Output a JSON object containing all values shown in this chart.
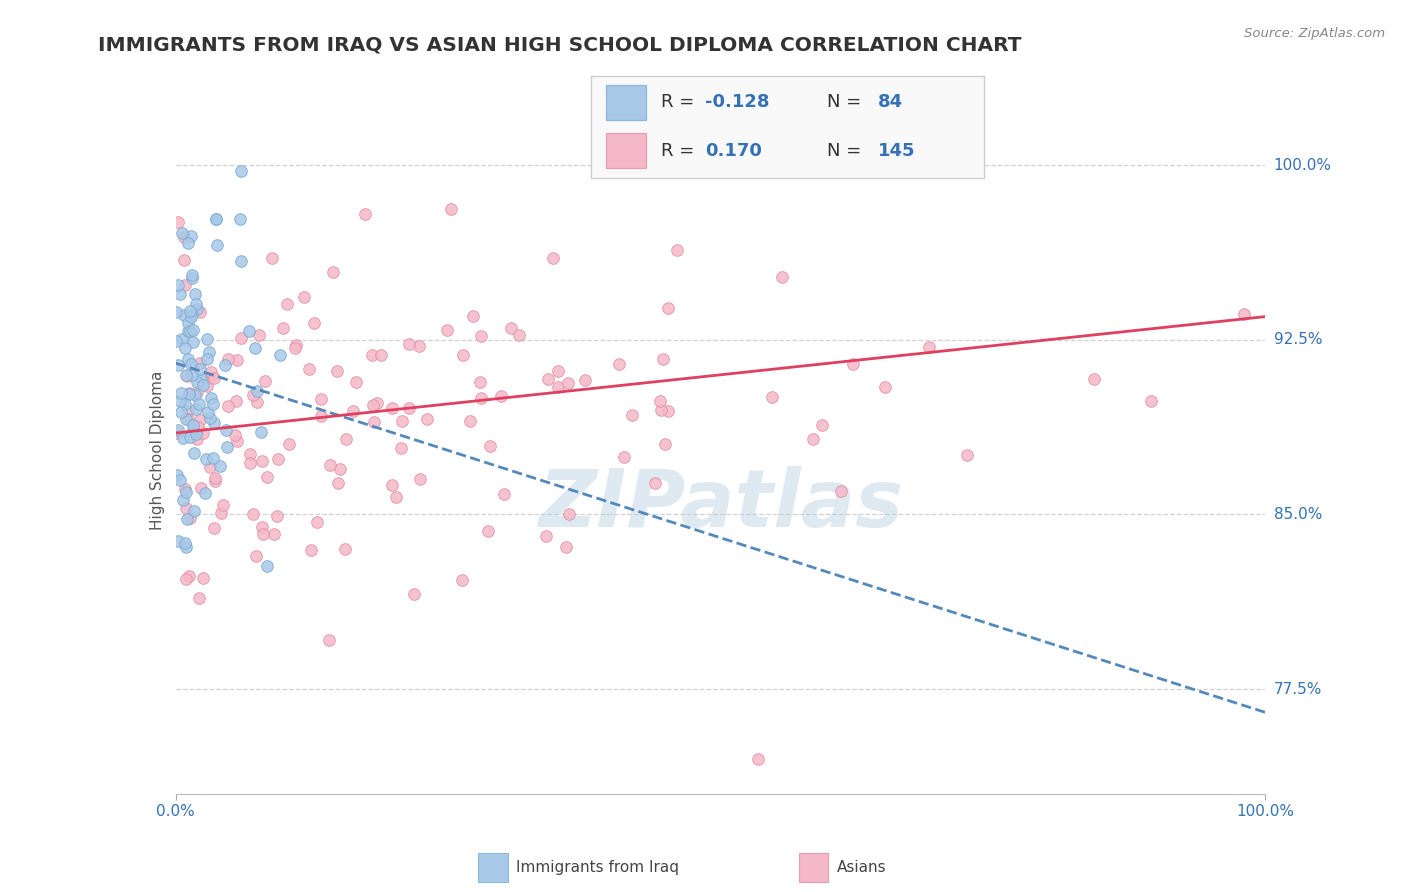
{
  "title": "IMMIGRANTS FROM IRAQ VS ASIAN HIGH SCHOOL DIPLOMA CORRELATION CHART",
  "source_text": "Source: ZipAtlas.com",
  "ylabel": "High School Diploma",
  "right_yticks": [
    77.5,
    85.0,
    92.5,
    100.0
  ],
  "right_ytick_labels": [
    "77.5%",
    "85.0%",
    "92.5%",
    "100.0%"
  ],
  "xlim": [
    0.0,
    100.0
  ],
  "ylim": [
    73.0,
    102.5
  ],
  "watermark": "ZIPatlas",
  "iraq_scatter_color": "#a8c8e8",
  "iraq_scatter_edge": "#7aaad0",
  "asian_scatter_color": "#f5b8c8",
  "asian_scatter_edge": "#e090a8",
  "iraq_line_color": "#5588bb",
  "asian_line_color": "#e04060",
  "title_color": "#333333",
  "title_fontsize": 14.5,
  "grid_color": "#cccccc",
  "background_color": "#ffffff",
  "iraq_trend_x": [
    0,
    100
  ],
  "iraq_trend_y_start": 91.5,
  "iraq_trend_y_end": 76.5,
  "asian_trend_x": [
    0,
    100
  ],
  "asian_trend_y_start": 88.5,
  "asian_trend_y_end": 93.5,
  "legend_r1": "R = -0.128",
  "legend_n1": "N =  84",
  "legend_r2": "R =  0.170",
  "legend_n2": "N = 145",
  "legend_color_iraq": "#a8c8e8",
  "legend_color_asian": "#f5b8c8",
  "legend_text_color": "#333333",
  "legend_val_color": "#3472b5"
}
